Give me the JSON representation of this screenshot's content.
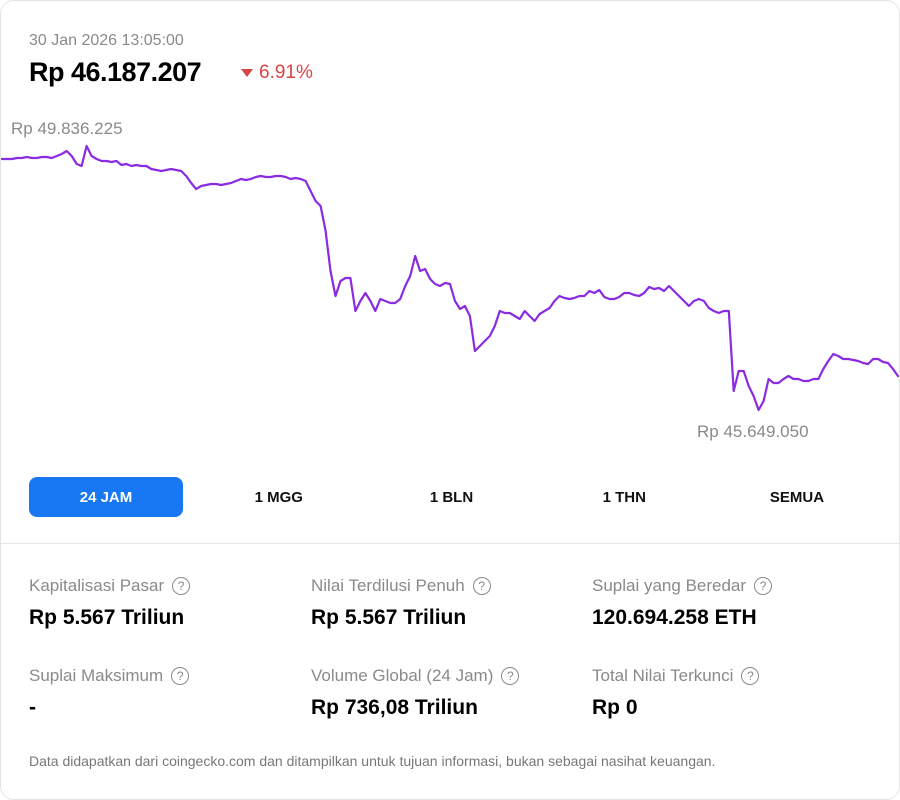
{
  "header": {
    "datetime": "30 Jan 2026 13:05:00",
    "price": "Rp 46.187.207",
    "change": "6.91%",
    "change_direction": "down",
    "change_color": "#d64545"
  },
  "chart_data": {
    "type": "line",
    "line_color": "#8a2be2",
    "grid": false,
    "max_label": "Rp 49.836.225",
    "min_label": "Rp 45.649.050",
    "ylim": [
      45649050,
      49836225
    ],
    "values": [
      49630000,
      49630000,
      49630000,
      49646000,
      49646000,
      49662000,
      49646000,
      49646000,
      49662000,
      49662000,
      49646000,
      49677000,
      49709000,
      49757000,
      49677000,
      49551000,
      49519000,
      49836225,
      49677000,
      49630000,
      49598000,
      49598000,
      49582000,
      49598000,
      49535000,
      49551000,
      49519000,
      49535000,
      49519000,
      49519000,
      49471000,
      49455000,
      49439000,
      49455000,
      49471000,
      49455000,
      49439000,
      49360000,
      49249000,
      49154000,
      49202000,
      49217000,
      49233000,
      49233000,
      49217000,
      49233000,
      49249000,
      49281000,
      49313000,
      49297000,
      49313000,
      49344000,
      49360000,
      49344000,
      49344000,
      49360000,
      49360000,
      49344000,
      49313000,
      49329000,
      49313000,
      49281000,
      49122000,
      48964000,
      48884000,
      48488000,
      47853000,
      47457000,
      47695000,
      47742000,
      47742000,
      47219000,
      47378000,
      47505000,
      47378000,
      47219000,
      47409000,
      47378000,
      47346000,
      47346000,
      47409000,
      47616000,
      47774000,
      48091000,
      47853000,
      47885000,
      47727000,
      47647000,
      47616000,
      47663000,
      47647000,
      47378000,
      47251000,
      47298000,
      47140000,
      46585000,
      46664000,
      46743000,
      46823000,
      46981000,
      47219000,
      47187000,
      47187000,
      47140000,
      47092000,
      47219000,
      47140000,
      47060000,
      47172000,
      47219000,
      47267000,
      47378000,
      47457000,
      47425000,
      47409000,
      47425000,
      47457000,
      47457000,
      47536000,
      47505000,
      47552000,
      47441000,
      47409000,
      47409000,
      47441000,
      47505000,
      47505000,
      47473000,
      47457000,
      47505000,
      47600000,
      47568000,
      47584000,
      47536000,
      47616000,
      47536000,
      47457000,
      47378000,
      47298000,
      47378000,
      47409000,
      47378000,
      47267000,
      47219000,
      47187000,
      47219000,
      47219000,
      45950000,
      46267000,
      46267000,
      46030000,
      45871000,
      45649050,
      45792000,
      46141000,
      46077000,
      46077000,
      46141000,
      46188000,
      46141000,
      46141000,
      46109000,
      46109000,
      46141000,
      46141000,
      46300000,
      46426000,
      46537000,
      46505000,
      46458000,
      46458000,
      46442000,
      46426000,
      46394000,
      46379000,
      46458000,
      46458000,
      46410000,
      46394000,
      46300000,
      46187207
    ]
  },
  "ranges": [
    {
      "label": "24 JAM",
      "active": true
    },
    {
      "label": "1 MGG",
      "active": false
    },
    {
      "label": "1 BLN",
      "active": false
    },
    {
      "label": "1 THN",
      "active": false
    },
    {
      "label": "SEMUA",
      "active": false
    }
  ],
  "accent_color": "#1877f2",
  "stats": [
    {
      "label": "Kapitalisasi Pasar",
      "value": "Rp 5.567 Triliun"
    },
    {
      "label": "Nilai Terdilusi Penuh",
      "value": "Rp 5.567 Triliun"
    },
    {
      "label": "Suplai yang Beredar",
      "value": "120.694.258 ETH"
    },
    {
      "label": "Suplai Maksimum",
      "value": "-"
    },
    {
      "label": "Volume Global (24 Jam)",
      "value": "Rp 736,08 Triliun"
    },
    {
      "label": "Total Nilai Terkunci",
      "value": "Rp 0"
    }
  ],
  "help_icon_glyph": "?",
  "footer": "Data didapatkan dari coingecko.com dan ditampilkan untuk tujuan informasi, bukan sebagai nasihat keuangan."
}
